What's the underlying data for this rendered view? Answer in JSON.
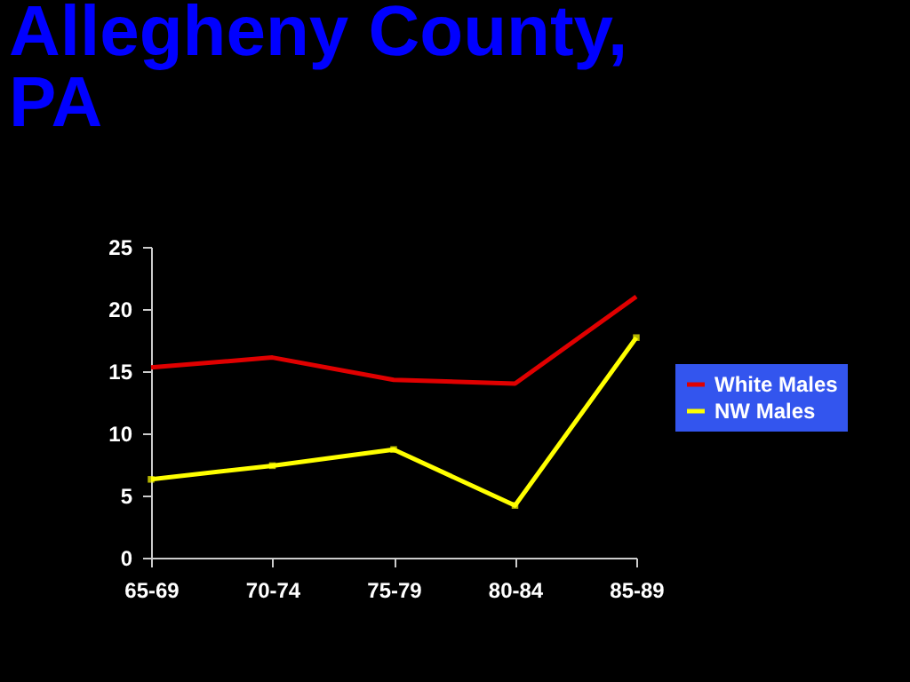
{
  "chart_data": {
    "type": "line",
    "title": "Allegheny County, PA",
    "categories": [
      "65-69",
      "70-74",
      "75-79",
      "80-84",
      "85-89"
    ],
    "series": [
      {
        "name": "White Males",
        "color": "#e00000",
        "values": [
          15.3,
          16.1,
          14.3,
          14.0,
          21.0
        ],
        "marker": "none"
      },
      {
        "name": "NW Males",
        "color": "#ffff00",
        "values": [
          6.3,
          7.4,
          8.7,
          4.2,
          17.7
        ],
        "marker": "square"
      }
    ],
    "ylim": [
      0,
      25
    ],
    "yticks": [
      0,
      5,
      10,
      15,
      20,
      25
    ],
    "grid": false,
    "legend": "right"
  }
}
